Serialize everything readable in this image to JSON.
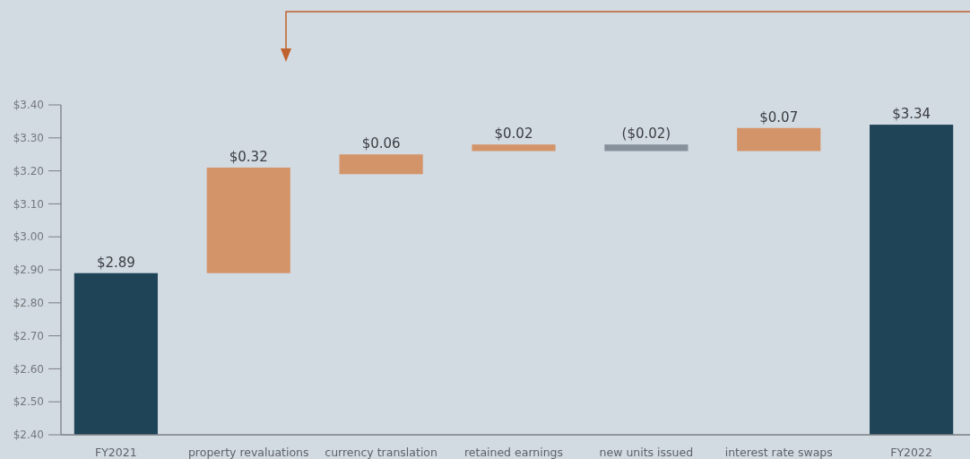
{
  "chart_data": {
    "type": "bar",
    "categories": [
      "FY2021",
      "property revaluations",
      "currency translation",
      "retained earnings",
      "new units issued",
      "interest rate swaps",
      "FY2022"
    ],
    "values": [
      2.89,
      0.32,
      0.06,
      0.02,
      -0.02,
      0.07,
      3.34
    ],
    "base": [
      null,
      2.89,
      3.19,
      3.26,
      3.28,
      3.26,
      null
    ],
    "colors": [
      "#1f4357",
      "#d4946a",
      "#d4946a",
      "#d4946a",
      "#87919b",
      "#d4946a",
      "#1f4357"
    ],
    "value_labels": [
      "$2.89",
      "$0.32",
      "$0.06",
      "$0.02",
      "($0.02)",
      "$0.07",
      "$3.34"
    ],
    "ylim": [
      2.4,
      3.4
    ],
    "yticks": [
      {
        "value": 2.4,
        "label": "$2.40"
      },
      {
        "value": 2.5,
        "label": "$2.50"
      },
      {
        "value": 2.6,
        "label": "$2.60"
      },
      {
        "value": 2.7,
        "label": "$2.70"
      },
      {
        "value": 2.8,
        "label": "$2.80"
      },
      {
        "value": 2.9,
        "label": "$2.90"
      },
      {
        "value": 3.0,
        "label": "$3.00"
      },
      {
        "value": 3.1,
        "label": "$3.10"
      },
      {
        "value": 3.2,
        "label": "$3.20"
      },
      {
        "value": 3.3,
        "label": "$3.30"
      },
      {
        "value": 3.4,
        "label": "$3.40"
      }
    ],
    "grid": false
  }
}
